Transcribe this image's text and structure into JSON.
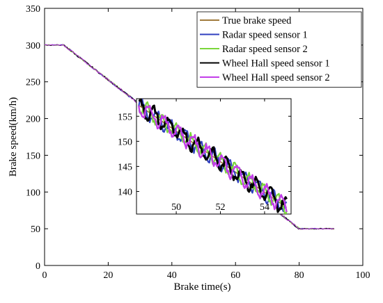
{
  "chart_data": [
    {
      "type": "line",
      "xlabel": "Brake time(s)",
      "ylabel": "Brake speed(km/h)",
      "xlim": [
        0,
        100
      ],
      "ylim": [
        0,
        350
      ],
      "xticks": [
        "0",
        "20",
        "40",
        "60",
        "80",
        "100"
      ],
      "yticks": [
        "0",
        "50",
        "100",
        "150",
        "200",
        "250",
        "300",
        "350"
      ],
      "grid": false,
      "legend_position": "top-right",
      "series": [
        {
          "name": "True brake speed",
          "color": "#a07a3c",
          "x": [
            0,
            6,
            80,
            91
          ],
          "y": [
            300,
            300,
            50,
            50
          ]
        },
        {
          "name": "Radar speed sensor 1",
          "color": "#2f3fbf",
          "x": [
            0,
            6,
            80,
            91
          ],
          "y": [
            300,
            300,
            50,
            50
          ]
        },
        {
          "name": "Radar speed sensor 2",
          "color": "#7ad63a",
          "x": [
            0,
            6,
            80,
            91
          ],
          "y": [
            300,
            300,
            50,
            50
          ]
        },
        {
          "name": "Wheel Hall speed sensor 1",
          "color": "#000000",
          "x": [
            0,
            6,
            80,
            91
          ],
          "y": [
            300,
            300,
            50,
            50
          ]
        },
        {
          "name": "Wheel Hall speed sensor 2",
          "color": "#c23ee8",
          "x": [
            0,
            6,
            80,
            91
          ],
          "y": [
            300,
            300,
            50,
            50
          ]
        }
      ]
    },
    {
      "type": "line",
      "role": "inset",
      "xlim": [
        48.2,
        55.2
      ],
      "ylim": [
        135.5,
        158.5
      ],
      "xticks": [
        "50",
        "52",
        "54"
      ],
      "yticks": [
        "140",
        "145",
        "150",
        "155"
      ],
      "series": [
        {
          "name": "True brake speed",
          "color": "#a07a3c",
          "x": [
            48.3,
            55.0
          ],
          "y": [
            157.2,
            136.8
          ]
        },
        {
          "name": "Radar speed sensor 1",
          "color": "#2f3fbf",
          "x": [
            48.3,
            55.0
          ],
          "y": [
            157.2,
            136.8
          ]
        },
        {
          "name": "Radar speed sensor 2",
          "color": "#7ad63a",
          "x": [
            48.3,
            55.0
          ],
          "y": [
            157.2,
            136.8
          ]
        },
        {
          "name": "Wheel Hall speed sensor 1",
          "color": "#000000",
          "x": [
            48.3,
            55.0
          ],
          "y": [
            157.2,
            136.8
          ]
        },
        {
          "name": "Wheel Hall speed sensor 2",
          "color": "#c23ee8",
          "x": [
            48.3,
            55.0
          ],
          "y": [
            157.2,
            136.8
          ]
        }
      ]
    }
  ]
}
